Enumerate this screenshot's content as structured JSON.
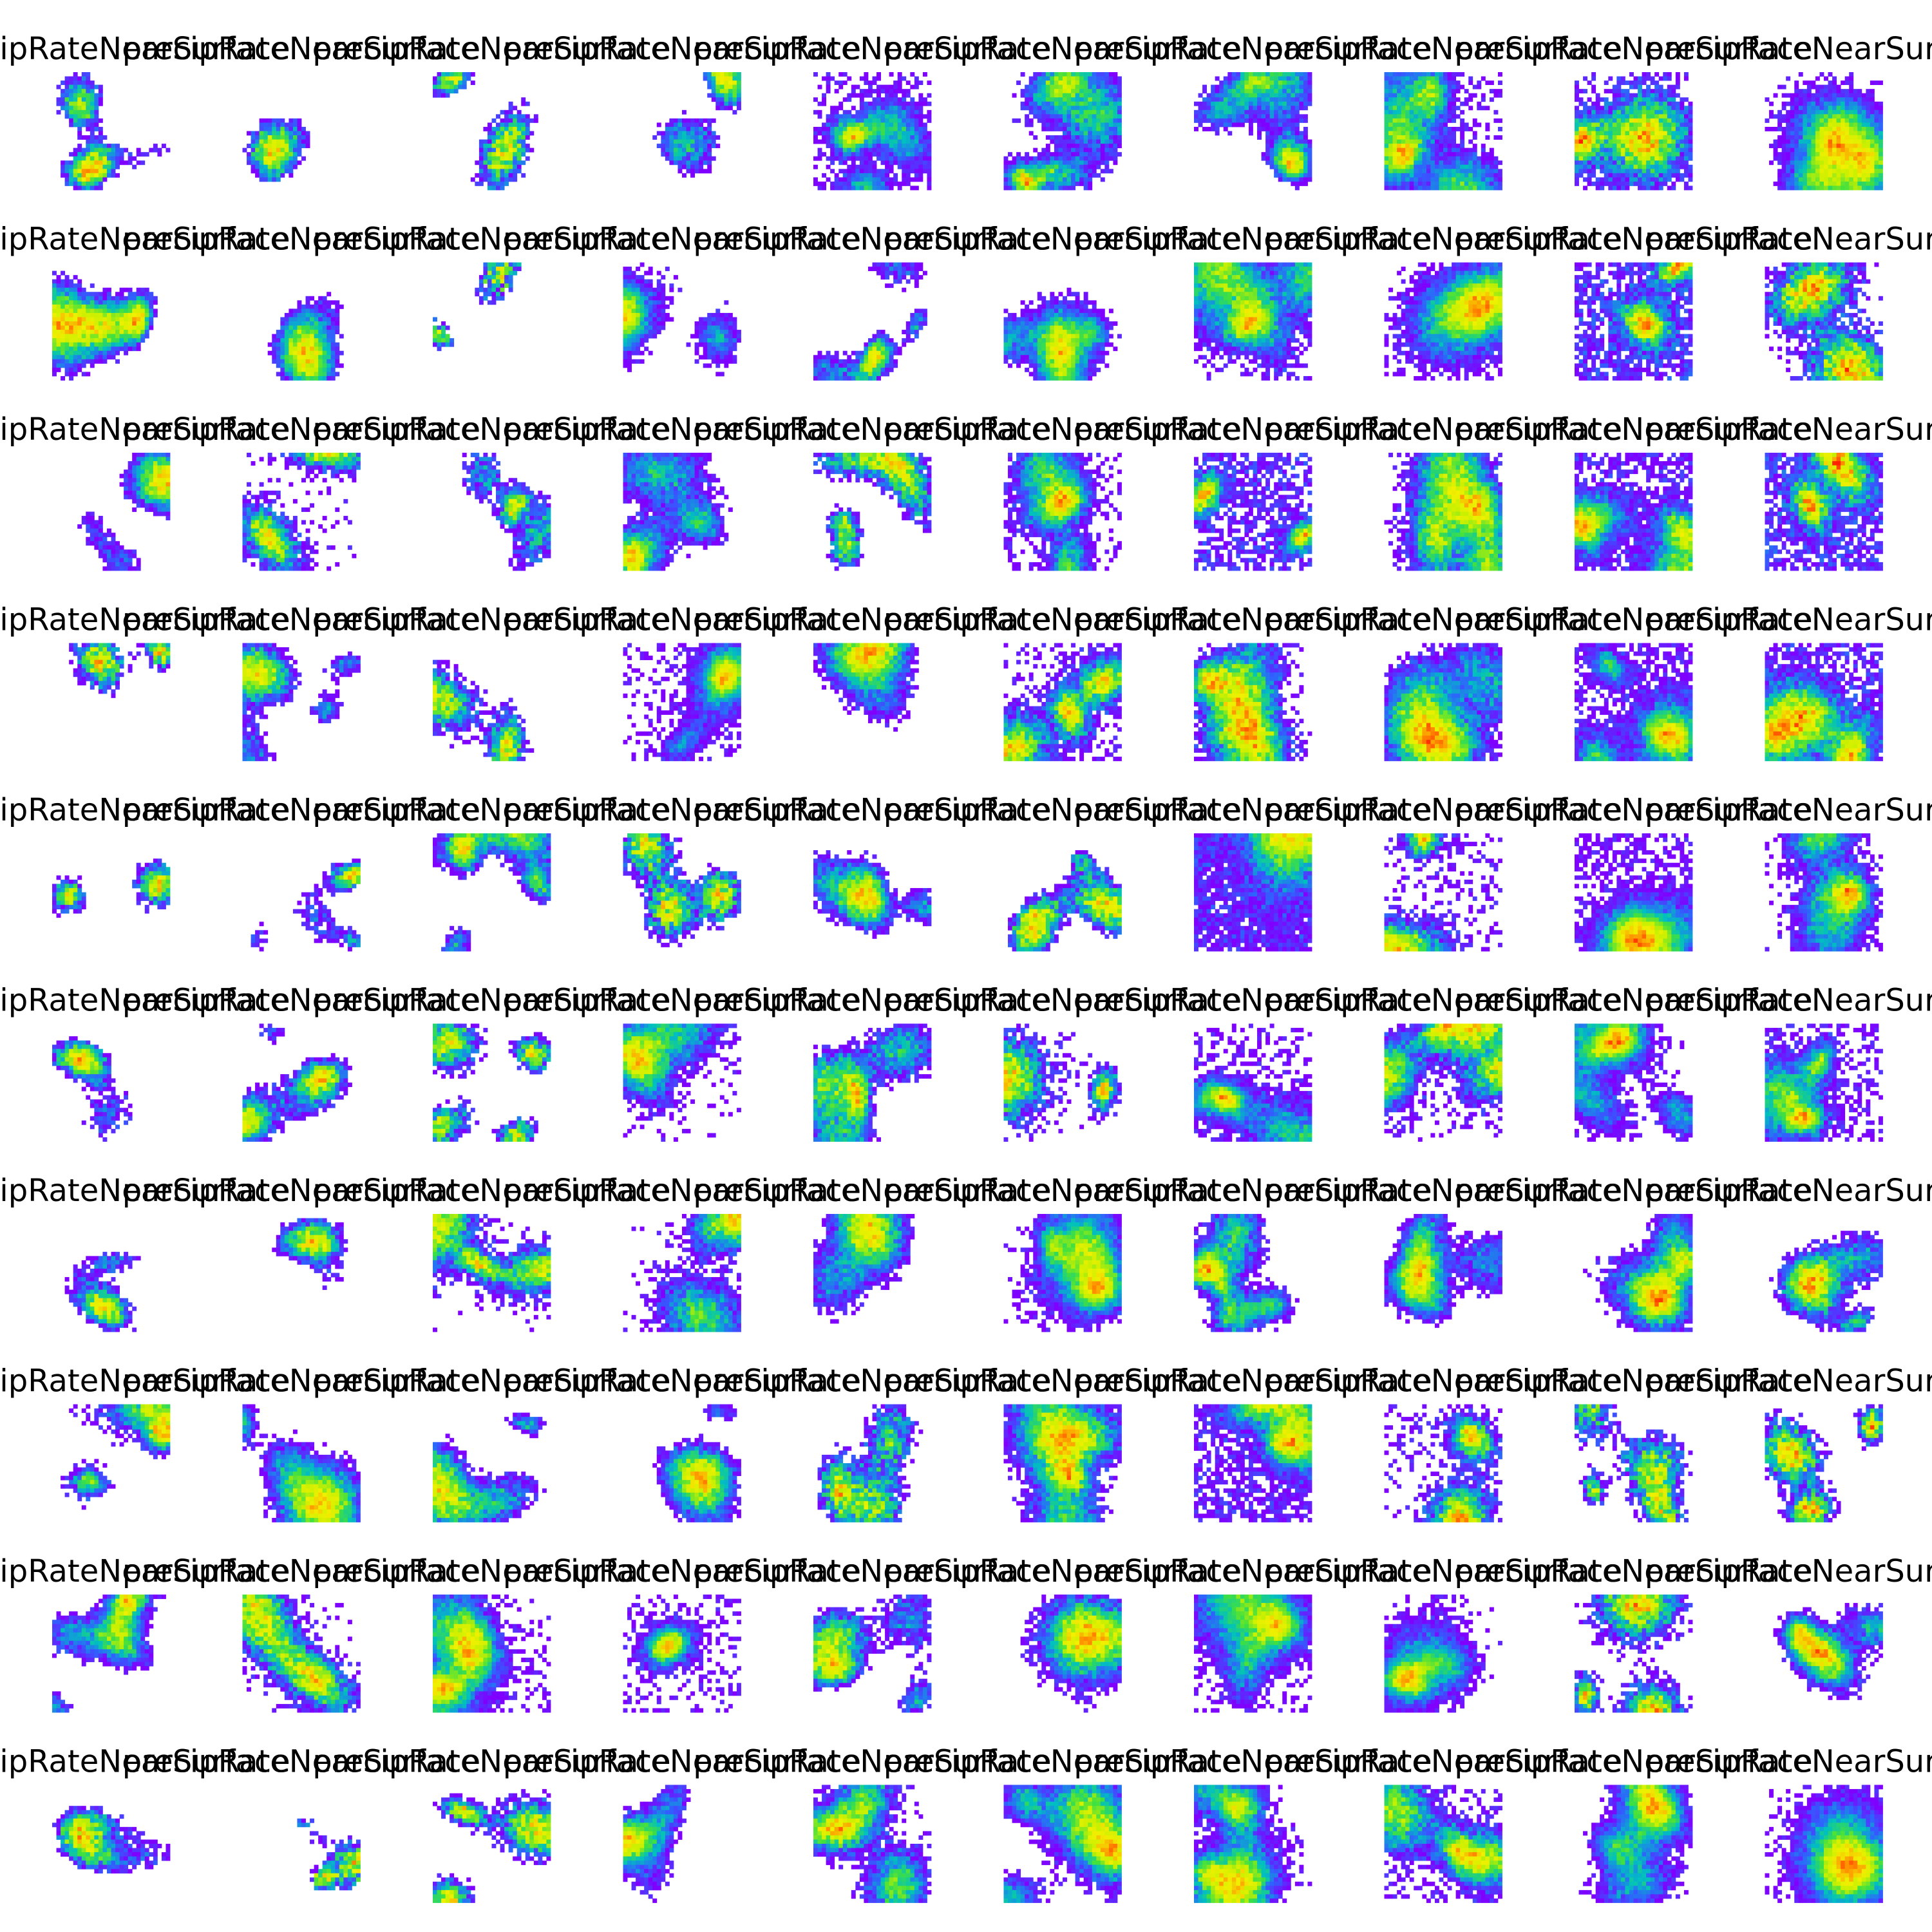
{
  "figure": {
    "rows": 10,
    "cols": 10,
    "panel_title": "precipRateNearSurface"
  },
  "chart_data": {
    "type": "heatmap",
    "title": "",
    "panel_titles": "precipRateNearSurface",
    "grid_shape": [
      10,
      10
    ],
    "axes": "off",
    "legend": "none",
    "colormap": [
      "#8000ff",
      "#3060ff",
      "#00c0c0",
      "#40e040",
      "#c8f000",
      "#f0f000",
      "#ff9000",
      "#ff2000"
    ],
    "missing_value_color": "#ffffff",
    "panels": [
      [
        {
          "coverage": 0.35,
          "intensity": 0.55
        },
        {
          "coverage": 0.22,
          "intensity": 0.45
        },
        {
          "coverage": 0.3,
          "intensity": 0.35
        },
        {
          "coverage": 0.28,
          "intensity": 0.35
        },
        {
          "coverage": 0.75,
          "intensity": 0.45
        },
        {
          "coverage": 0.78,
          "intensity": 0.55
        },
        {
          "coverage": 0.6,
          "intensity": 0.5
        },
        {
          "coverage": 0.82,
          "intensity": 0.6
        },
        {
          "coverage": 0.85,
          "intensity": 0.65
        },
        {
          "coverage": 0.8,
          "intensity": 0.6
        }
      ],
      [
        {
          "coverage": 0.55,
          "intensity": 0.55
        },
        {
          "coverage": 0.35,
          "intensity": 0.45
        },
        {
          "coverage": 0.12,
          "intensity": 0.3
        },
        {
          "coverage": 0.4,
          "intensity": 0.4
        },
        {
          "coverage": 0.3,
          "intensity": 0.35
        },
        {
          "coverage": 0.55,
          "intensity": 0.45
        },
        {
          "coverage": 0.85,
          "intensity": 0.5
        },
        {
          "coverage": 0.8,
          "intensity": 0.6
        },
        {
          "coverage": 0.82,
          "intensity": 0.6
        },
        {
          "coverage": 0.75,
          "intensity": 0.7
        }
      ],
      [
        {
          "coverage": 0.3,
          "intensity": 0.45
        },
        {
          "coverage": 0.45,
          "intensity": 0.4
        },
        {
          "coverage": 0.35,
          "intensity": 0.35
        },
        {
          "coverage": 0.7,
          "intensity": 0.5
        },
        {
          "coverage": 0.45,
          "intensity": 0.45
        },
        {
          "coverage": 0.72,
          "intensity": 0.55
        },
        {
          "coverage": 0.7,
          "intensity": 0.55
        },
        {
          "coverage": 0.85,
          "intensity": 0.55
        },
        {
          "coverage": 0.85,
          "intensity": 0.6
        },
        {
          "coverage": 0.85,
          "intensity": 0.7
        }
      ],
      [
        {
          "coverage": 0.2,
          "intensity": 0.5
        },
        {
          "coverage": 0.4,
          "intensity": 0.35
        },
        {
          "coverage": 0.35,
          "intensity": 0.4
        },
        {
          "coverage": 0.6,
          "intensity": 0.5
        },
        {
          "coverage": 0.45,
          "intensity": 0.55
        },
        {
          "coverage": 0.72,
          "intensity": 0.55
        },
        {
          "coverage": 0.8,
          "intensity": 0.6
        },
        {
          "coverage": 0.92,
          "intensity": 0.65
        },
        {
          "coverage": 0.85,
          "intensity": 0.6
        },
        {
          "coverage": 0.88,
          "intensity": 0.65
        }
      ],
      [
        {
          "coverage": 0.18,
          "intensity": 0.4
        },
        {
          "coverage": 0.2,
          "intensity": 0.45
        },
        {
          "coverage": 0.4,
          "intensity": 0.45
        },
        {
          "coverage": 0.55,
          "intensity": 0.5
        },
        {
          "coverage": 0.45,
          "intensity": 0.45
        },
        {
          "coverage": 0.45,
          "intensity": 0.45
        },
        {
          "coverage": 0.95,
          "intensity": 0.45
        },
        {
          "coverage": 0.45,
          "intensity": 0.45
        },
        {
          "coverage": 0.75,
          "intensity": 0.6
        },
        {
          "coverage": 0.75,
          "intensity": 0.6
        }
      ],
      [
        {
          "coverage": 0.25,
          "intensity": 0.5
        },
        {
          "coverage": 0.4,
          "intensity": 0.45
        },
        {
          "coverage": 0.4,
          "intensity": 0.4
        },
        {
          "coverage": 0.55,
          "intensity": 0.5
        },
        {
          "coverage": 0.65,
          "intensity": 0.5
        },
        {
          "coverage": 0.45,
          "intensity": 0.55
        },
        {
          "coverage": 0.65,
          "intensity": 0.55
        },
        {
          "coverage": 0.7,
          "intensity": 0.6
        },
        {
          "coverage": 0.7,
          "intensity": 0.6
        },
        {
          "coverage": 0.7,
          "intensity": 0.6
        }
      ],
      [
        {
          "coverage": 0.25,
          "intensity": 0.45
        },
        {
          "coverage": 0.22,
          "intensity": 0.45
        },
        {
          "coverage": 0.55,
          "intensity": 0.45
        },
        {
          "coverage": 0.6,
          "intensity": 0.45
        },
        {
          "coverage": 0.55,
          "intensity": 0.4
        },
        {
          "coverage": 0.75,
          "intensity": 0.5
        },
        {
          "coverage": 0.6,
          "intensity": 0.55
        },
        {
          "coverage": 0.65,
          "intensity": 0.5
        },
        {
          "coverage": 0.6,
          "intensity": 0.6
        },
        {
          "coverage": 0.55,
          "intensity": 0.6
        }
      ],
      [
        {
          "coverage": 0.3,
          "intensity": 0.5
        },
        {
          "coverage": 0.55,
          "intensity": 0.45
        },
        {
          "coverage": 0.45,
          "intensity": 0.4
        },
        {
          "coverage": 0.45,
          "intensity": 0.5
        },
        {
          "coverage": 0.55,
          "intensity": 0.5
        },
        {
          "coverage": 0.85,
          "intensity": 0.65
        },
        {
          "coverage": 0.8,
          "intensity": 0.55
        },
        {
          "coverage": 0.55,
          "intensity": 0.55
        },
        {
          "coverage": 0.5,
          "intensity": 0.45
        },
        {
          "coverage": 0.45,
          "intensity": 0.6
        }
      ],
      [
        {
          "coverage": 0.45,
          "intensity": 0.5
        },
        {
          "coverage": 0.65,
          "intensity": 0.5
        },
        {
          "coverage": 0.7,
          "intensity": 0.55
        },
        {
          "coverage": 0.45,
          "intensity": 0.45
        },
        {
          "coverage": 0.55,
          "intensity": 0.45
        },
        {
          "coverage": 0.6,
          "intensity": 0.55
        },
        {
          "coverage": 0.8,
          "intensity": 0.5
        },
        {
          "coverage": 0.65,
          "intensity": 0.55
        },
        {
          "coverage": 0.55,
          "intensity": 0.6
        },
        {
          "coverage": 0.5,
          "intensity": 0.6
        }
      ],
      [
        {
          "coverage": 0.35,
          "intensity": 0.55
        },
        {
          "coverage": 0.15,
          "intensity": 0.45
        },
        {
          "coverage": 0.4,
          "intensity": 0.5
        },
        {
          "coverage": 0.35,
          "intensity": 0.45
        },
        {
          "coverage": 0.7,
          "intensity": 0.55
        },
        {
          "coverage": 0.75,
          "intensity": 0.55
        },
        {
          "coverage": 0.75,
          "intensity": 0.5
        },
        {
          "coverage": 0.75,
          "intensity": 0.55
        },
        {
          "coverage": 0.75,
          "intensity": 0.55
        },
        {
          "coverage": 0.8,
          "intensity": 0.6
        }
      ]
    ]
  }
}
